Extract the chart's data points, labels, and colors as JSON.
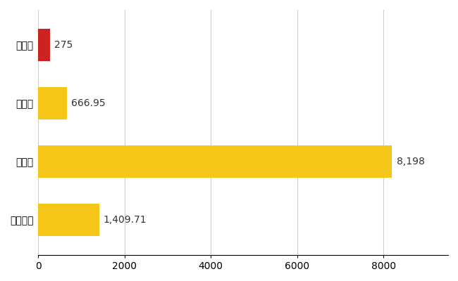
{
  "categories": [
    "飯島町",
    "県平均",
    "県最大",
    "全国平均"
  ],
  "values": [
    275,
    666.95,
    8198,
    1409.71
  ],
  "labels": [
    "275",
    "666.95",
    "8,198",
    "1,409.71"
  ],
  "bar_colors": [
    "#cc2222",
    "#f5c518",
    "#f5c518",
    "#f5c518"
  ],
  "xlim": [
    0,
    9500
  ],
  "xticks": [
    0,
    2000,
    4000,
    6000,
    8000
  ],
  "background_color": "#ffffff",
  "grid_color": "#cccccc",
  "label_fontsize": 10,
  "tick_fontsize": 10,
  "value_fontsize": 10
}
